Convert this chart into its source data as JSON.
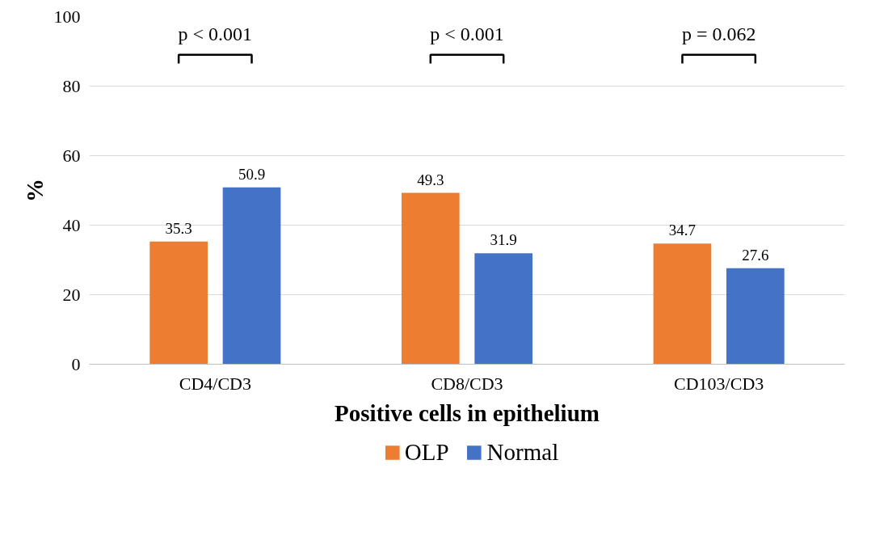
{
  "chart_data": {
    "type": "bar",
    "xlabel": "Positive cells in epithelium",
    "ylabel": "%",
    "categories": [
      "CD4/CD3",
      "CD8/CD3",
      "CD103/CD3"
    ],
    "series": [
      {
        "name": "OLP",
        "color": "#ed7d31",
        "values": [
          35.3,
          49.3,
          34.7
        ]
      },
      {
        "name": "Normal",
        "color": "#4472c4",
        "values": [
          50.9,
          31.9,
          27.6
        ]
      }
    ],
    "ylim": [
      0,
      100
    ],
    "yticks": [
      0,
      20,
      40,
      60,
      80,
      100
    ],
    "grid": "y",
    "legend": "bottom",
    "data_labels": true,
    "annotations": [
      "p < 0.001",
      "p < 0.001",
      "p = 0.062"
    ]
  }
}
